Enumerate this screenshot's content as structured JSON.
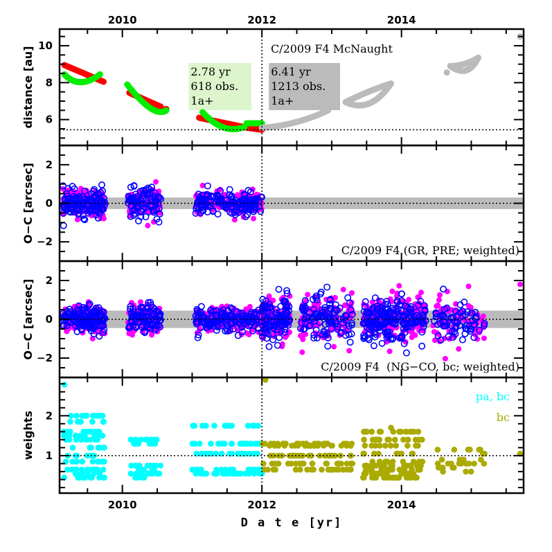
{
  "chart_data": {
    "type": "scatter",
    "title": "C/2009 F4 McNaught",
    "xlabel": "D a t e [yr]",
    "xlim": [
      2009.1,
      2015.75
    ],
    "x_ticks_major": [
      2010,
      2012,
      2014
    ],
    "x_tick_labels": [
      "2010",
      "2012",
      "2014"
    ],
    "x_ticks_minor_step": 0.5,
    "vline_x": 2012.0,
    "panels": [
      {
        "id": "distance",
        "ylabel": "distance [au]",
        "ylim": [
          4.6,
          10.9
        ],
        "y_ticks_major": [
          6,
          8,
          10
        ],
        "y_tick_labels": [
          "6",
          "8",
          "10"
        ],
        "y_minor_step": 0.5,
        "hline": 5.45,
        "annotation_title": "C/2009 F4 McNaught",
        "boxes": [
          {
            "name": "fit-interval-box",
            "lines": [
              "2.78 yr",
              "618 obs.",
              "1a+"
            ],
            "color": "#ddf5cc"
          },
          {
            "name": "full-interval-box",
            "lines": [
              "6.41 yr",
              "1213 obs.",
              "1a+"
            ],
            "color": "#bbbbbb"
          }
        ],
        "series": [
          {
            "name": "heliocentric distance (fit arc)",
            "color": "#ff0000",
            "segments": [
              [
                2009.17,
                8.95,
                2009.73,
                8.05
              ],
              [
                2010.1,
                7.45,
                2010.55,
                6.7
              ],
              [
                2010.63,
                6.57,
                2010.63,
                6.57
              ],
              [
                2011.1,
                6.1,
                2011.8,
                5.55
              ],
              [
                2011.8,
                5.55,
                2012.0,
                5.45
              ]
            ]
          },
          {
            "name": "geocentric distance (fit arc)",
            "color": "#00ee00",
            "arcs": [
              [
                2009.17,
                8.45,
                2009.38,
                7.6,
                2009.68,
                8.45
              ],
              [
                2010.07,
                7.9,
                2010.45,
                6.05,
                2010.63,
                6.5
              ],
              [
                2011.15,
                6.4,
                2011.45,
                5.15,
                2011.75,
                5.6
              ],
              [
                2011.78,
                5.8,
                2011.9,
                5.8,
                2012.0,
                5.8
              ]
            ]
          },
          {
            "name": "distance (remaining arc)",
            "color": "#bbbbbb",
            "arcs": [
              [
                2012.0,
                5.55,
                2012.5,
                5.7,
                2012.95,
                6.5
              ],
              [
                2013.2,
                6.95,
                2013.55,
                6.3,
                2013.85,
                7.95
              ],
              [
                2013.2,
                6.95,
                2013.55,
                7.6,
                2013.85,
                7.95
              ],
              [
                2014.7,
                8.9,
                2014.95,
                8.2,
                2015.1,
                9.35
              ],
              [
                2014.7,
                8.9,
                2014.9,
                8.9,
                2015.1,
                9.35
              ],
              [
                2015.7,
                10.5,
                2015.7,
                10.5,
                2015.7,
                10.5
              ],
              [
                2014.65,
                8.55,
                2014.65,
                8.55,
                2014.65,
                8.55
              ]
            ]
          }
        ]
      },
      {
        "id": "oc-gr-pre",
        "ylabel": "O−C [arcsec]",
        "ylim": [
          -3,
          3
        ],
        "y_ticks_major": [
          -2,
          0,
          2
        ],
        "y_tick_labels": [
          "−2",
          "0",
          "2"
        ],
        "y_minor_step": 0.5,
        "band": [
          -0.3,
          0.3
        ],
        "hline": 0,
        "annotation_title": "C/2009 F4 (GR, PRE; weighted)",
        "clusters": [
          {
            "x": [
              2009.15,
              2009.75
            ],
            "y_sd": 0.35,
            "n": 140
          },
          {
            "x": [
              2010.08,
              2010.55
            ],
            "y_sd": 0.4,
            "n": 90
          },
          {
            "x": [
              2011.05,
              2012.0
            ],
            "y_sd": 0.3,
            "n": 150
          }
        ]
      },
      {
        "id": "oc-ng-co",
        "ylabel": "O−C [arcsec]",
        "ylim": [
          -3,
          3
        ],
        "y_ticks_major": [
          -2,
          0,
          2
        ],
        "y_tick_labels": [
          "−2",
          "0",
          "2"
        ],
        "y_minor_step": 0.5,
        "band": [
          -0.45,
          0.45
        ],
        "hline": 0,
        "annotation_title": "C/2009 F4  (NG−CO, bc; weighted)",
        "clusters": [
          {
            "x": [
              2009.15,
              2009.75
            ],
            "y_sd": 0.35,
            "n": 140
          },
          {
            "x": [
              2010.08,
              2010.55
            ],
            "y_sd": 0.4,
            "n": 90
          },
          {
            "x": [
              2011.05,
              2012.0
            ],
            "y_sd": 0.3,
            "n": 150
          },
          {
            "x": [
              2012.0,
              2012.4
            ],
            "y_sd": 0.6,
            "n": 100
          },
          {
            "x": [
              2012.55,
              2013.3
            ],
            "y_sd": 0.7,
            "n": 110
          },
          {
            "x": [
              2013.45,
              2014.35
            ],
            "y_sd": 0.55,
            "n": 200
          },
          {
            "x": [
              2014.45,
              2015.2
            ],
            "y_sd": 0.6,
            "n": 70
          },
          {
            "x": [
              2015.7,
              2015.7
            ],
            "y_sd": 0.0,
            "y_c": 1.8,
            "n": 1
          }
        ]
      },
      {
        "id": "weights",
        "ylabel": "weights",
        "ylim": [
          0.06,
          2.96
        ],
        "y_ticks_major": [
          1,
          2
        ],
        "y_tick_labels": [
          "1",
          "2"
        ],
        "y_minor_step": 0.2,
        "hline": 1,
        "legend": [
          {
            "label": "pa, bc",
            "color": "#00ffff"
          },
          {
            "label": "bc",
            "color": "#aaaa00"
          }
        ],
        "legend_position": "top-right",
        "clusters": [
          {
            "series": "pa, bc",
            "x": [
              2009.15,
              2009.75
            ],
            "levels": [
              0.45,
              0.55,
              0.65,
              0.85,
              1.0,
              1.2,
              1.4,
              1.5,
              1.6,
              1.85,
              2.0
            ],
            "n": 120
          },
          {
            "series": "pa, bc",
            "x": [
              2010.1,
              2010.55
            ],
            "levels": [
              0.45,
              0.55,
              0.65,
              0.75,
              1.3,
              1.4
            ],
            "n": 50
          },
          {
            "series": "pa, bc",
            "x": [
              2011.0,
              2012.0
            ],
            "levels": [
              0.55,
              0.65,
              1.05,
              1.3,
              1.75
            ],
            "n": 110
          },
          {
            "series": "bc",
            "x": [
              2012.0,
              2013.3
            ],
            "levels": [
              0.65,
              0.8,
              1.0,
              1.25,
              1.3
            ],
            "n": 120
          },
          {
            "series": "bc",
            "x": [
              2013.45,
              2014.3
            ],
            "levels": [
              0.45,
              0.55,
              0.65,
              0.75,
              0.85,
              1.05,
              1.25,
              1.4,
              1.6
            ],
            "n": 150
          },
          {
            "series": "bc",
            "x": [
              2014.5,
              2015.2
            ],
            "levels": [
              0.6,
              0.7,
              0.8,
              0.9,
              1.05,
              1.15
            ],
            "n": 30
          },
          {
            "series": "bc",
            "x": [
              2015.7,
              2015.7
            ],
            "levels": [
              1.05
            ],
            "n": 1
          }
        ]
      }
    ],
    "colors": {
      "oc_all": "#ff00ff",
      "oc_selected": "#0000ff",
      "band": "#bbbbbb"
    }
  }
}
